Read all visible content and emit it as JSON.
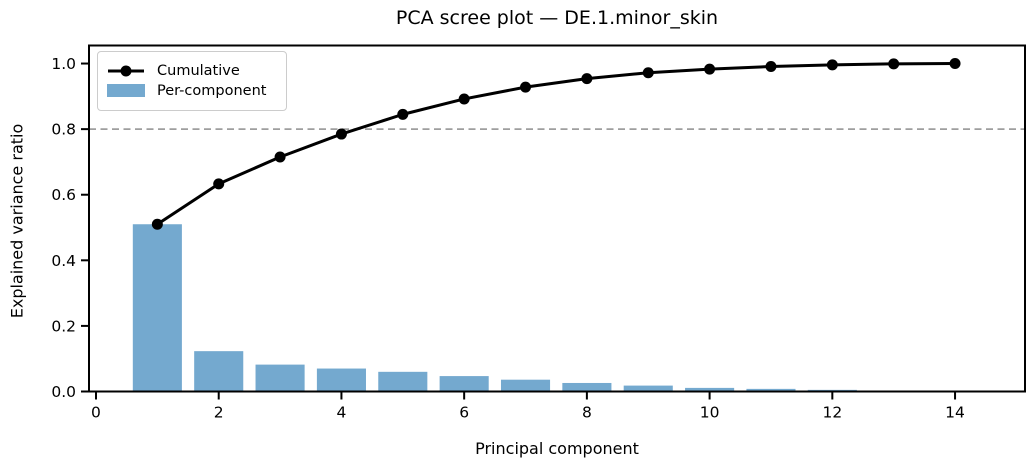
{
  "chart_data": {
    "type": "bar",
    "title": "PCA scree plot — DE.1.minor_skin",
    "xlabel": "Principal component",
    "ylabel": "Explained variance ratio",
    "categories": [
      1,
      2,
      3,
      4,
      5,
      6,
      7,
      8,
      9,
      10,
      11,
      12,
      13,
      14
    ],
    "series": [
      {
        "name": "Cumulative",
        "type": "line",
        "values": [
          0.51,
          0.633,
          0.715,
          0.785,
          0.845,
          0.892,
          0.928,
          0.954,
          0.972,
          0.983,
          0.991,
          0.996,
          0.999,
          1.0
        ]
      },
      {
        "name": "Per-component",
        "type": "bar",
        "values": [
          0.51,
          0.123,
          0.082,
          0.07,
          0.06,
          0.047,
          0.036,
          0.026,
          0.018,
          0.011,
          0.008,
          0.005,
          0.003,
          0.001
        ]
      }
    ],
    "threshold_line": {
      "y": 0.8,
      "style": "dashed"
    },
    "xlim": [
      -0.114,
      15.14
    ],
    "ylim": [
      0,
      1.055
    ],
    "xticks": [
      0,
      2,
      4,
      6,
      8,
      10,
      12,
      14
    ],
    "yticks": [
      0,
      0.2,
      0.4,
      0.6,
      0.8,
      1.0
    ],
    "ytick_labels": [
      "0.0",
      "0.2",
      "0.4",
      "0.6",
      "0.8",
      "1.0"
    ],
    "bar_width": 0.8,
    "grid": false,
    "legend_position": "upper left",
    "colors": {
      "bar": "#74A9CF",
      "line": "#000000",
      "marker": "#000000",
      "threshold": "#9e9e9e",
      "axis": "#000000"
    }
  }
}
